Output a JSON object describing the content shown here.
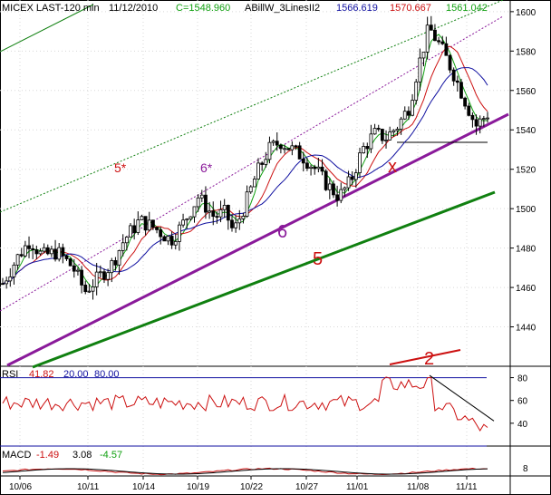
{
  "chart_data": [
    {
      "type": "candlestick",
      "title": "MICEX LAST-120 min",
      "date": "11/12/2010",
      "close_label": "C=1548.960",
      "indicator_name": "ABillW_3LinesII2",
      "indicator_values": [
        "1566.619",
        "1570.667",
        "1561.042"
      ],
      "ylim": [
        1420,
        1605
      ],
      "yticks": [
        1440,
        1460,
        1480,
        1500,
        1520,
        1540,
        1560,
        1580,
        1600
      ],
      "xticks": [
        "10/06",
        "10/11",
        "10/14",
        "10/19",
        "10/22",
        "10/27",
        "11/01",
        "11/08",
        "11/11"
      ],
      "candle_count": 130,
      "annotations": [
        "5*",
        "6*",
        "6",
        "5",
        "x",
        "2"
      ],
      "grid": true,
      "colors": {
        "blue": "#1010a0",
        "red": "#cc1010",
        "green": "#10a010",
        "purple": "#8a1a9a",
        "darkgreen": "#108010"
      }
    },
    {
      "type": "line",
      "title": "RSI",
      "values_label": [
        "41.82",
        "20.00",
        "80.00"
      ],
      "ylim": [
        20,
        90
      ],
      "yticks": [
        40,
        60,
        80
      ],
      "levels": [
        20,
        80
      ]
    },
    {
      "type": "line",
      "title": "MACD",
      "values_label": [
        "-1.49",
        "3.08",
        "-4.57"
      ],
      "yticks": [
        8
      ]
    }
  ]
}
